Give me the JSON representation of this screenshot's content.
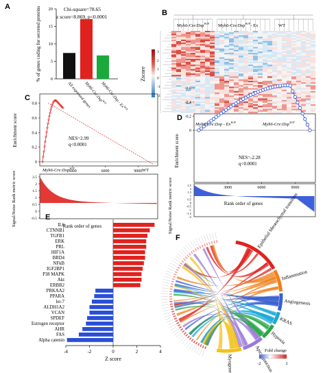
{
  "panel_letters": [
    "A",
    "B",
    "C",
    "D",
    "E",
    "F"
  ],
  "chart_data": [
    {
      "panel": "A",
      "type": "bar",
      "annotation_line1": "Chi-square=78.65",
      "annotation_line2": "z score=8.869, p<0.0001",
      "ylabel": "% of genes coding for secreted proteins",
      "ylim": [
        0,
        20
      ],
      "yticks": [
        "0",
        "5",
        "10",
        "15",
        "20"
      ],
      "categories": [
        "All expressed genes",
        "Myh6-Cre:Dsp",
        "Myh6-Cre:Dsp - Ex"
      ],
      "category_sups": [
        "",
        "W/F",
        "W/F"
      ],
      "values": [
        7.4,
        17.1,
        6.7
      ],
      "colors": [
        "#111111",
        "#e0221e",
        "#1aaa3c"
      ]
    },
    {
      "panel": "B",
      "type": "heatmap",
      "group_labels": [
        "Myh6-Cre:Dsp",
        "Myh6-Cre:Dsp",
        "WT"
      ],
      "group_sups": [
        "W/F",
        "W/F",
        ""
      ],
      "group_suffix": [
        "",
        "- Ex",
        ""
      ],
      "colorbar_title": "Zscore",
      "colorbar_ticks": [
        "3",
        "2",
        "1",
        "0",
        "-1",
        "-2"
      ]
    },
    {
      "panel": "C",
      "type": "line",
      "ylabel": "Enrichment score",
      "yticks": [
        "0.8",
        "0.6",
        "0.4",
        "0.2",
        "0"
      ],
      "xticks": [
        "3000",
        "6000",
        "9000"
      ],
      "nes": "NES=2.99",
      "q": "q<0.0001",
      "left_label": "Myh6-Cre:Dsp",
      "left_sup": "W/F",
      "right_label": "WT",
      "ylabel2": "Signal/Noise Rank metric score",
      "yticks2": [
        "2.5",
        "2",
        "1.5",
        "1",
        "0.5",
        "0",
        "-0.5"
      ],
      "xlabel": "Rank order of genes"
    },
    {
      "panel": "D",
      "type": "line",
      "ylabel": "Enrichment score",
      "yticks": [
        "0",
        "-0.2",
        "-0.4",
        "-0.6"
      ],
      "xticks": [
        "3000",
        "6000",
        "9000"
      ],
      "nes": "NES=-2.28",
      "q": "q<0.0001",
      "left_label": "Myh6-Cre:Dsp - Ex",
      "left_sup": "W/F",
      "right_label": "Myh6-Cre:Dsp",
      "right_sup": "W/F",
      "ylabel2": "Signal/Noise Rank metric score",
      "yticks2": [
        "2.5",
        "2",
        "1.5",
        "1",
        "0.5",
        "0",
        "-0.5",
        "-1",
        "-1.5",
        "-2"
      ],
      "xlabel": "Rank order of genes"
    },
    {
      "panel": "E",
      "type": "bar",
      "orientation": "horizontal",
      "categories": [
        "IL6",
        "CTNNB1",
        "TGFB1",
        "ERK",
        "PRL",
        "HIF1A",
        "BRD4",
        "NFkB",
        "IGF2BP1",
        "P38 MAPK",
        "Akt",
        "ERBB2",
        "PRKAA2",
        "PPARA",
        "let-7",
        "ALDH1A2",
        "VCAN",
        "SPDEF",
        "Estrogen receptor",
        "AHR",
        "FAS",
        "Alpha catenin"
      ],
      "values": [
        3.5,
        3.1,
        2.9,
        2.8,
        2.8,
        2.7,
        2.7,
        2.6,
        2.5,
        2.4,
        2.4,
        2.3,
        -1.5,
        -1.6,
        -1.8,
        -2.0,
        -2.0,
        -2.2,
        -2.3,
        -2.6,
        -2.9,
        -3.9
      ],
      "xlabel": "Z score",
      "xticks": [
        "-4",
        "-2",
        "0",
        "2",
        "4"
      ],
      "xlim": [
        -4,
        4
      ],
      "pos_color": "#e0221e",
      "neg_color": "#2a4fd6"
    },
    {
      "panel": "F",
      "type": "chord",
      "categories": [
        "Epithelial Mesenchymal transition",
        "Inflammation",
        "Angiogenesis",
        "KRAS",
        "Hypoxia",
        "Apical junction",
        "Myogenesis"
      ],
      "colors": [
        "#e0221e",
        "#f07f1a",
        "#3a5fd0",
        "#19a8d8",
        "#27a844",
        "#9a7ad8",
        "#f2c21a"
      ],
      "legend_title": "Fold change",
      "legend_ticks": [
        "-2",
        "3"
      ]
    }
  ]
}
